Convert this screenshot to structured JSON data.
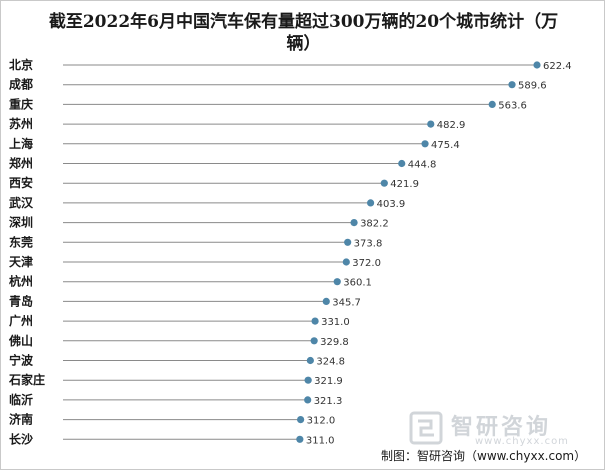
{
  "chart_data": {
    "type": "lollipop",
    "title": "截至2022年6月中国汽车保有量超过300万辆的20个城市统计（万辆）",
    "categories": [
      "北京",
      "成都",
      "重庆",
      "苏州",
      "上海",
      "郑州",
      "西安",
      "武汉",
      "深圳",
      "东莞",
      "天津",
      "杭州",
      "青岛",
      "广州",
      "佛山",
      "宁波",
      "石家庄",
      "临沂",
      "济南",
      "长沙"
    ],
    "values": [
      622.4,
      589.6,
      563.6,
      482.9,
      475.4,
      444.8,
      421.9,
      403.9,
      382.2,
      373.8,
      372.0,
      360.1,
      345.7,
      331.0,
      329.8,
      324.8,
      321.9,
      321.3,
      312.0,
      311.0
    ],
    "value_labels": [
      "622.4",
      "589.6",
      "563.6",
      "482.9",
      "475.4",
      "444.8",
      "421.9",
      "403.9",
      "382.2",
      "373.8",
      "372.0",
      "360.1",
      "345.7",
      "331.0",
      "329.8",
      "324.8",
      "321.9",
      "321.3",
      "312.0",
      "311.0"
    ],
    "xlim": [
      0,
      622.4
    ],
    "grid": false,
    "colors": {
      "stem": "#8a8a8a",
      "dot": "#4e86a8"
    }
  },
  "footer": {
    "source": "制图：智研咨询（www.chyxx.com）"
  },
  "watermark": {
    "name": "智研咨询",
    "url": "www.chyxx.com"
  }
}
